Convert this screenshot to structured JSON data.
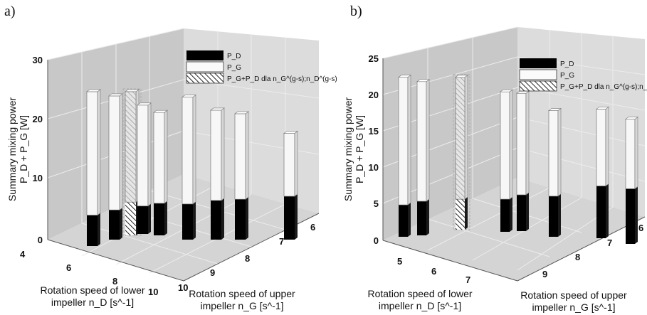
{
  "colors": {
    "back_wall": "#c8c8c8",
    "side_wall": "#dcdcdc",
    "floor": "#d6d6d6",
    "grid": "#ececec",
    "pd_fill": "#000000",
    "pg_fill": "#f7f7f7",
    "outline": "#777777",
    "hatch_box": "#b0b0b0"
  },
  "chart_data": [
    {
      "panel": "a)",
      "type": "bar3d",
      "zlabel_line1": "Summary mixing power",
      "zlabel_line2": "P_D + P_G [W]",
      "xlabel_line1": "Rotation speed of lower",
      "xlabel_line2": "impeller n_D [s^-1]",
      "ylabel_line1": "Rotation speed of upper",
      "ylabel_line2": "impeller n_G [s^-1]",
      "x_ticks": [
        "4",
        "6",
        "8",
        "10"
      ],
      "y_ticks": [
        "10",
        "9",
        "8",
        "7",
        "6"
      ],
      "z_ticks": [
        "0",
        "10",
        "20",
        "30"
      ],
      "zlim": [
        0,
        30
      ],
      "legend": {
        "pd": "P_D",
        "pg": "P_G",
        "hatched": "P_G+P_D dla n_G^(g-s);n_D^(g-s)"
      },
      "bars": [
        {
          "pd": 5.2,
          "pg": 20.8
        },
        {
          "pd": 5.0,
          "pg": 19.2
        },
        {
          "pd": 5.6,
          "pg": 18.6,
          "hatched": true
        },
        {
          "pd": 4.7,
          "pg": 17.0
        },
        {
          "pd": 5.4,
          "pg": 15.3
        },
        {
          "pd": 6.0,
          "pg": 18.0
        },
        {
          "pd": 6.6,
          "pg": 15.2
        },
        {
          "pd": 6.8,
          "pg": 14.4
        },
        {
          "pd": 7.3,
          "pg": 10.6
        }
      ]
    },
    {
      "panel": "b)",
      "type": "bar3d",
      "zlabel_line1": "Summary mixing power",
      "zlabel_line2": "P_D + P_G [W]",
      "xlabel_line1": "Rotation speed of lower",
      "xlabel_line2": "impeller n_D [s^-1]",
      "ylabel_line1": "Rotation speed of upper",
      "ylabel_line2": "impeller n_G [s^-1]",
      "x_ticks": [
        "5",
        "6",
        "7"
      ],
      "y_ticks": [
        "9",
        "8",
        "7",
        "6"
      ],
      "z_ticks": [
        "0",
        "5",
        "10",
        "15",
        "20",
        "25"
      ],
      "zlim": [
        0,
        25
      ],
      "legend": {
        "pd": "P_D",
        "pg": "P_G",
        "hatched": "P_G+P_D dla n_G^(g-s);n_D^(g-s)"
      },
      "bars": [
        {
          "pd": 4.4,
          "pg": 17.6
        },
        {
          "pd": 4.7,
          "pg": 16.5
        },
        {
          "pd": 4.2,
          "pg": 16.8,
          "hatched": true
        },
        {
          "pd": 4.5,
          "pg": 14.8
        },
        {
          "pd": 5.0,
          "pg": 14.0
        },
        {
          "pd": 5.6,
          "pg": 11.8
        },
        {
          "pd": 7.2,
          "pg": 10.6
        },
        {
          "pd": 7.6,
          "pg": 9.6
        }
      ]
    }
  ]
}
